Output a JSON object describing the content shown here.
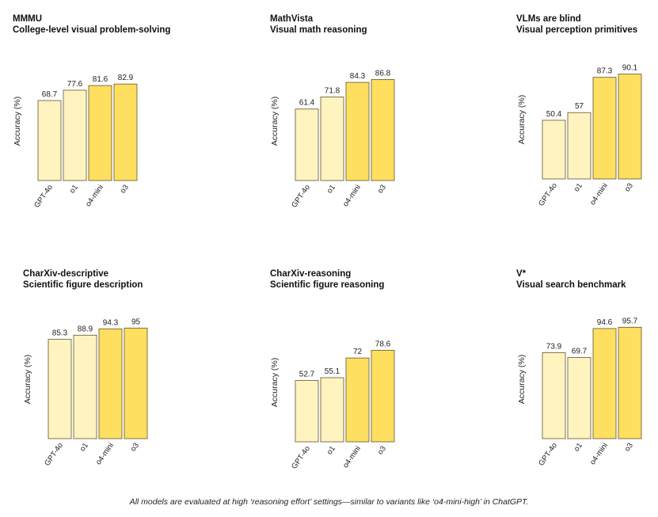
{
  "colors": {
    "light": "#FFF3BF",
    "dark": "#FFDF5F",
    "stroke": "#5E5431"
  },
  "footnote": "All models are evaluated at high ‘reasoning effort’ settings—similar to variants like ‘o4-mini-high’ in ChatGPT.",
  "chart_data": [
    {
      "type": "bar",
      "title": "MMMU",
      "subtitle": "College-level visual problem-solving",
      "ylabel": "Accuracy (%)",
      "categories": [
        "GPT-4o",
        "o1",
        "o4-mini",
        "o3"
      ],
      "values": [
        68.7,
        77.6,
        81.6,
        82.9
      ],
      "value_labels": [
        "68.7",
        "77.6",
        "81.6",
        "82.9"
      ],
      "ylim": [
        0,
        100
      ]
    },
    {
      "type": "bar",
      "title": "MathVista",
      "subtitle": "Visual math reasoning",
      "ylabel": "Accuracy (%)",
      "categories": [
        "GPT-4o",
        "o1",
        "o4-mini",
        "o3"
      ],
      "values": [
        61.4,
        71.8,
        84.3,
        86.8
      ],
      "value_labels": [
        "61.4",
        "71.8",
        "84.3",
        "86.8"
      ],
      "ylim": [
        0,
        100
      ]
    },
    {
      "type": "bar",
      "title": "VLMs are blind",
      "subtitle": "Visual perception primitives",
      "ylabel": "Accuracy (%)",
      "categories": [
        "GPT-4o",
        "o1",
        "o4-mini",
        "o3"
      ],
      "values": [
        50.4,
        57,
        87.3,
        90.1
      ],
      "value_labels": [
        "50.4",
        "57",
        "87.3",
        "90.1"
      ],
      "ylim": [
        0,
        100
      ]
    },
    {
      "type": "bar",
      "title": "CharXiv-descriptive",
      "subtitle": "Scientific figure description",
      "ylabel": "Accuracy (%)",
      "categories": [
        "GPT-4o",
        "o1",
        "o4-mini",
        "o3"
      ],
      "values": [
        85.3,
        88.9,
        94.3,
        95
      ],
      "value_labels": [
        "85.3",
        "88.9",
        "94.3",
        "95"
      ],
      "ylim": [
        0,
        100
      ]
    },
    {
      "type": "bar",
      "title": "CharXiv-reasoning",
      "subtitle": "Scientific figure reasoning",
      "ylabel": "Accuracy (%)",
      "categories": [
        "GPT-4o",
        "o1",
        "o4-mini",
        "o3"
      ],
      "values": [
        52.7,
        55.1,
        72,
        78.6
      ],
      "value_labels": [
        "52.7",
        "55.1",
        "72",
        "78.6"
      ],
      "ylim": [
        0,
        100
      ]
    },
    {
      "type": "bar",
      "title": "V*",
      "subtitle": "Visual search benchmark",
      "ylabel": "Accuracy (%)",
      "categories": [
        "GPT-4o",
        "o1",
        "o4-mini",
        "o3"
      ],
      "values": [
        73.9,
        69.7,
        94.6,
        95.7
      ],
      "value_labels": [
        "73.9",
        "69.7",
        "94.6",
        "95.7"
      ],
      "ylim": [
        0,
        100
      ]
    }
  ]
}
